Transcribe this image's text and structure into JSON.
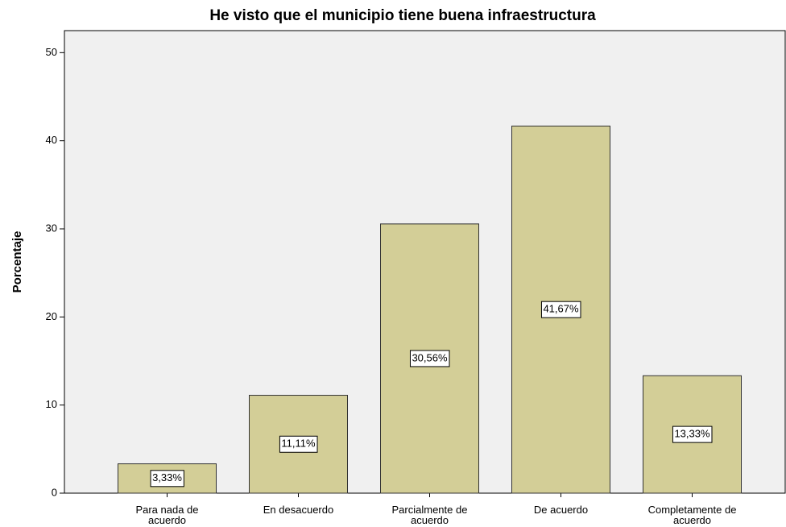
{
  "chart_data": {
    "type": "bar",
    "title": "He visto que el municipio tiene buena infraestructura",
    "y_label": "Porcentaje",
    "categories": [
      "Para nada de acuerdo",
      "En desacuerdo",
      "Parcialmente de acuerdo",
      "De acuerdo",
      "Completamente de acuerdo"
    ],
    "values": [
      3.33,
      11.11,
      30.56,
      41.67,
      13.33
    ],
    "value_labels": [
      "3,33%",
      "11,11%",
      "30,56%",
      "41,67%",
      "13,33%"
    ],
    "color": "#d3ce97",
    "ylim": [
      0,
      52.5
    ],
    "yticks": [
      0,
      10,
      20,
      30,
      40,
      50
    ],
    "grid": false
  }
}
